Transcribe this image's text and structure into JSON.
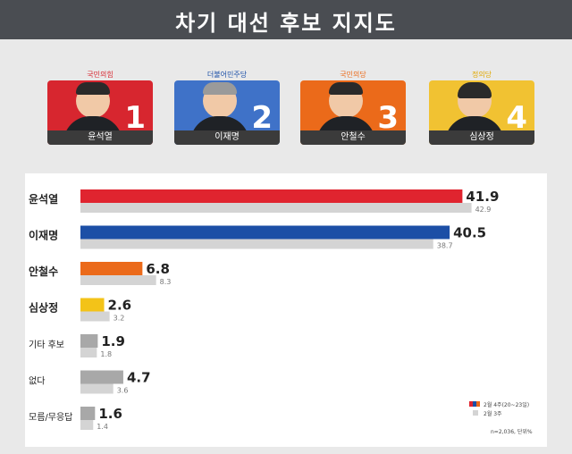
{
  "title": "차기 대선 후보 지지도",
  "candidates": [
    {
      "party": "국민의힘",
      "name": "윤석열",
      "number": "1",
      "color": "#d7262f",
      "party_color": "#d7262f"
    },
    {
      "party": "더불어민주당",
      "name": "이재명",
      "number": "2",
      "color": "#3f72c8",
      "party_color": "#1c4fa6"
    },
    {
      "party": "국민의당",
      "name": "안철수",
      "number": "3",
      "color": "#eb6a1a",
      "party_color": "#eb6a1a"
    },
    {
      "party": "정의당",
      "name": "심상정",
      "number": "4",
      "color": "#f1c232",
      "party_color": "#e0a800"
    }
  ],
  "chart_data": {
    "type": "bar",
    "categories": [
      "윤석열",
      "이재명",
      "안철수",
      "심상정",
      "기타 후보",
      "없다",
      "모름/무응답"
    ],
    "series": [
      {
        "name": "2월 4주(20~23일)",
        "values": [
          41.9,
          40.5,
          6.8,
          2.6,
          1.9,
          4.7,
          1.6
        ],
        "colors": [
          "#e0242f",
          "#1c4fa6",
          "#eb6a1a",
          "#f3c318",
          "#a8a8a8",
          "#a8a8a8",
          "#a8a8a8"
        ]
      },
      {
        "name": "2월 3주",
        "values": [
          42.9,
          38.7,
          8.3,
          3.2,
          1.8,
          3.6,
          1.4
        ],
        "color": "#d4d4d4"
      }
    ],
    "value_labels_current": [
      "41.9",
      "40.5",
      "6.8",
      "2.6",
      "1.9",
      "4.7",
      "1.6"
    ],
    "value_labels_previous": [
      "42.9",
      "38.7",
      "8.3",
      "3.2",
      "1.8",
      "3.6",
      "1.4"
    ],
    "xlim": [
      0,
      50
    ],
    "legend_position": "bottom-right",
    "note": "n=2,036, 단위%"
  }
}
